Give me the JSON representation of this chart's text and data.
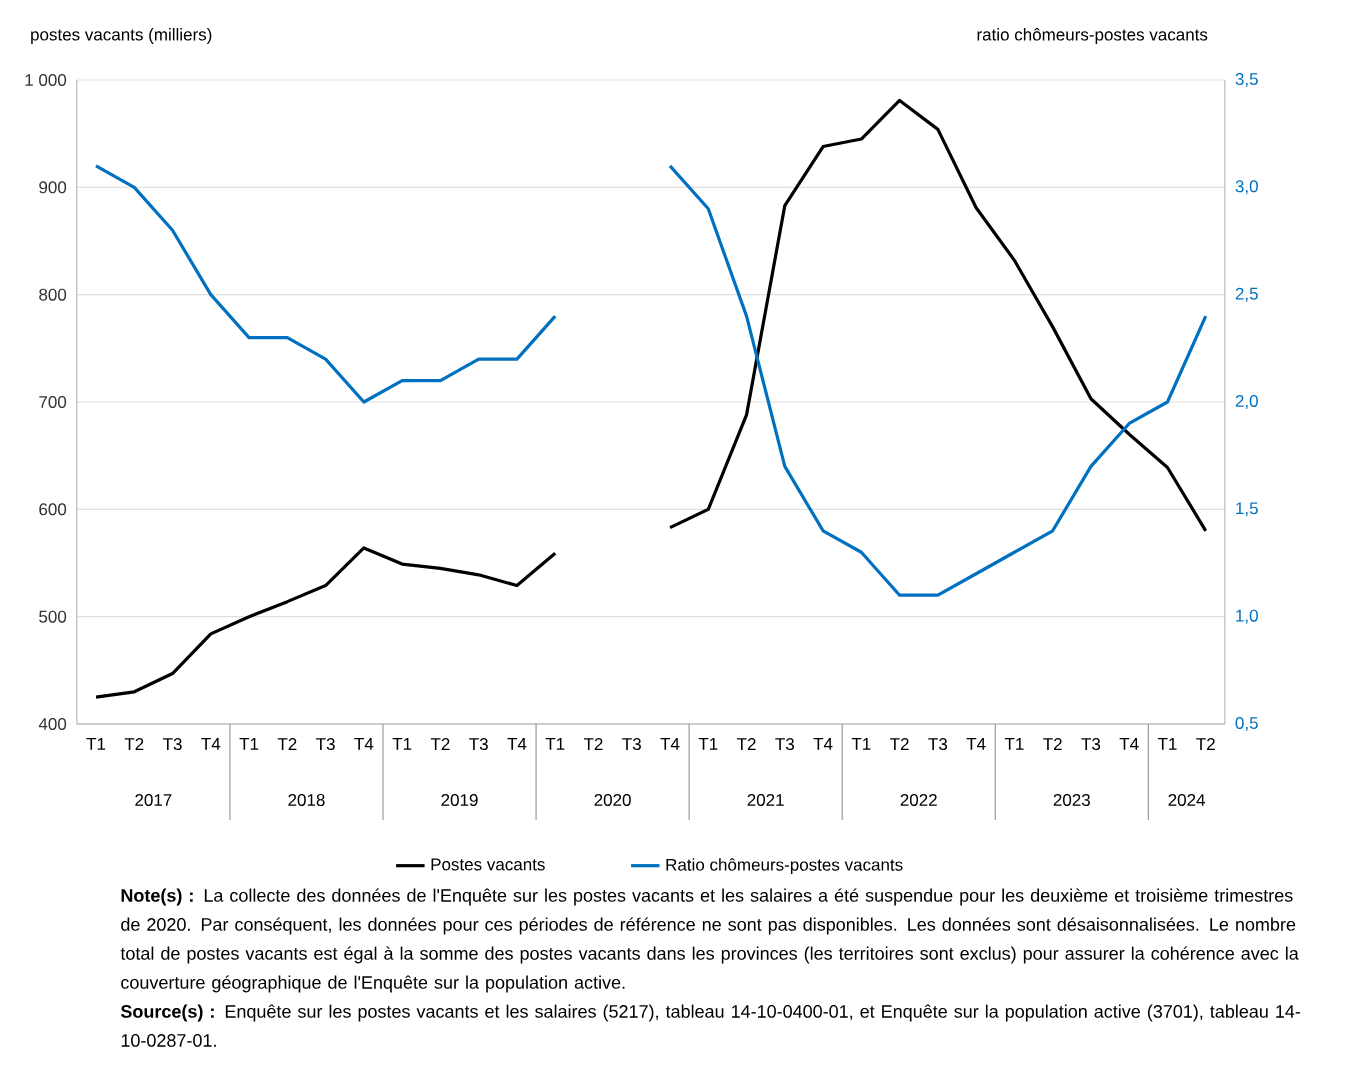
{
  "chart_data": {
    "type": "line",
    "categories": [
      "T1",
      "T2",
      "T3",
      "T4",
      "T1",
      "T2",
      "T3",
      "T4",
      "T1",
      "T2",
      "T3",
      "T4",
      "T1",
      "T2",
      "T3",
      "T4",
      "T1",
      "T2",
      "T3",
      "T4",
      "T1",
      "T2",
      "T3",
      "T4",
      "T1",
      "T2",
      "T3",
      "T4",
      "T1",
      "T2"
    ],
    "series": [
      {
        "name": "Postes vacants",
        "color": "#000000",
        "axis": "y",
        "values": [
          425,
          430,
          447,
          484,
          500,
          514,
          529,
          564,
          549,
          545,
          539,
          529,
          559,
          null,
          null,
          583,
          600,
          688,
          883,
          938,
          945,
          981,
          954,
          881,
          832,
          770,
          703,
          670,
          639,
          580
        ]
      },
      {
        "name": "Ratio chômeurs-postes vacants",
        "color": "#0070c0",
        "axis": "y2",
        "values": [
          3.1,
          3.0,
          2.8,
          2.5,
          2.3,
          2.3,
          2.2,
          2.0,
          2.1,
          2.1,
          2.2,
          2.2,
          2.4,
          null,
          null,
          3.1,
          2.9,
          2.4,
          1.7,
          1.4,
          1.3,
          1.1,
          1.1,
          1.2,
          1.3,
          1.4,
          1.7,
          1.9,
          2.0,
          2.4
        ]
      }
    ],
    "ylabel": "postes vacants (milliers)",
    "y2label": "ratio chômeurs-postes vacants",
    "ylim": [
      400,
      1000
    ],
    "yticks": [
      400,
      500,
      600,
      700,
      800,
      900,
      {
        "value": 1000,
        "label": "1 000"
      }
    ],
    "y2lim": [
      0.5,
      3.5
    ],
    "y2ticks": [
      {
        "value": 0.5,
        "label": "0,5"
      },
      {
        "value": 1.0,
        "label": "1,0"
      },
      {
        "value": 1.5,
        "label": "1,5"
      },
      {
        "value": 2.0,
        "label": "2,0"
      },
      {
        "value": 2.5,
        "label": "2,5"
      },
      {
        "value": 3.0,
        "label": "3,0"
      },
      {
        "value": 3.5,
        "label": "3,5"
      }
    ],
    "grid": "y",
    "legend": "bottom",
    "annotations": [
      "2017",
      "2018",
      "2019",
      "2020",
      "2021",
      "2022",
      "2023",
      "2024",
      "**Note(s) :** La collecte des données de l'Enquête sur les postes vacants et les salaires a été suspendue pour les deuxième et troisième trimestres de 2020. Par conséquent, les données pour ces périodes de référence ne sont pas disponibles. Les données sont désaisonnalisées.  Le nombre total de postes vacants est égal à la somme des postes vacants dans les provinces (les territoires sont exclus) pour assurer la cohérence avec la couverture géographique de l'Enquête sur la population active.",
      "**Source(s) :** Enquête sur les postes vacants et les salaires (5217), tableau 14-10-0400-01, et Enquête sur la population active (3701), tableau 14-10-0287-01."
    ]
  }
}
